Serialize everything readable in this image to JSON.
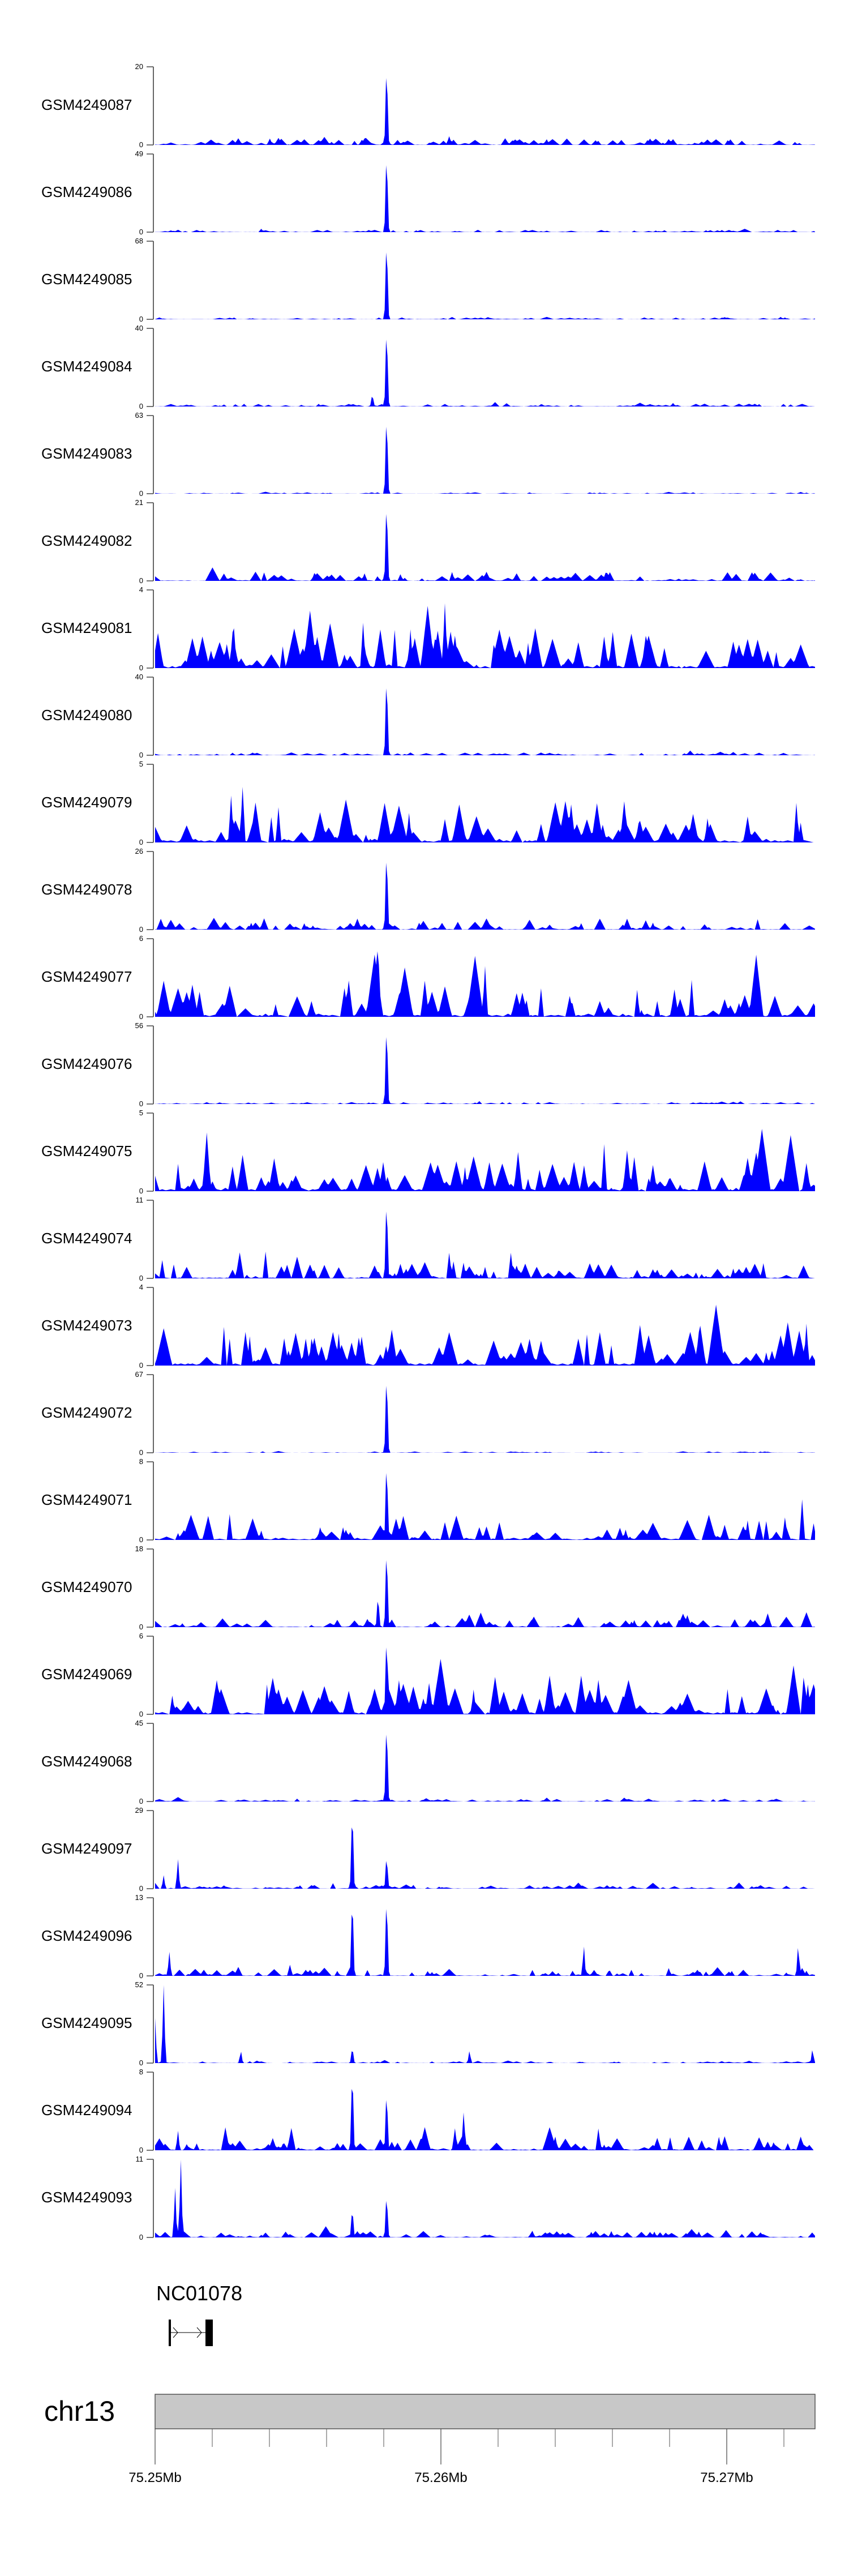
{
  "chart_data": {
    "type": "area",
    "title": "",
    "xlabel": "",
    "x_range_mb": [
      75.25,
      75.2731
    ],
    "fill_color": "#0000ff",
    "x_ticks": [
      {
        "value": 75.25,
        "label": "75.25Mb"
      },
      {
        "value": 75.26,
        "label": "75.26Mb"
      },
      {
        "value": 75.27,
        "label": "75.27Mb"
      }
    ],
    "minor_tick_step_mb": 0.002,
    "chromosome": {
      "label": "chr13",
      "color": "#c8c8c8"
    },
    "gene": {
      "name": "NC01078",
      "start_mb": 75.2505,
      "end_mb": 75.252,
      "strand": "+"
    },
    "tracks": [
      {
        "name": "GSM4249087",
        "ymax": 20,
        "ylim": [
          0,
          20
        ],
        "background": 0.15,
        "peaks": [
          [
            75.2581,
            20
          ]
        ]
      },
      {
        "name": "GSM4249086",
        "ymax": 49,
        "ylim": [
          0,
          49
        ],
        "background": 0.05,
        "peaks": [
          [
            75.2581,
            49
          ]
        ]
      },
      {
        "name": "GSM4249085",
        "ymax": 68,
        "ylim": [
          0,
          68
        ],
        "background": 0.04,
        "peaks": [
          [
            75.2581,
            68
          ]
        ]
      },
      {
        "name": "GSM4249084",
        "ymax": 40,
        "ylim": [
          0,
          40
        ],
        "background": 0.06,
        "peaks": [
          [
            75.2581,
            40
          ],
          [
            75.2576,
            6
          ]
        ]
      },
      {
        "name": "GSM4249083",
        "ymax": 63,
        "ylim": [
          0,
          63
        ],
        "background": 0.03,
        "peaks": [
          [
            75.2581,
            63
          ]
        ]
      },
      {
        "name": "GSM4249082",
        "ymax": 21,
        "ylim": [
          0,
          21
        ],
        "background": 0.2,
        "peaks": [
          [
            75.2581,
            21
          ]
        ]
      },
      {
        "name": "GSM4249081",
        "ymax": 4,
        "ylim": [
          0,
          4
        ],
        "background": 0.85,
        "peaks": []
      },
      {
        "name": "GSM4249080",
        "ymax": 40,
        "ylim": [
          0,
          40
        ],
        "background": 0.06,
        "peaks": [
          [
            75.2581,
            40
          ]
        ]
      },
      {
        "name": "GSM4249079",
        "ymax": 5,
        "ylim": [
          0,
          5
        ],
        "background": 0.9,
        "peaks": []
      },
      {
        "name": "GSM4249078",
        "ymax": 26,
        "ylim": [
          0,
          26
        ],
        "background": 0.15,
        "peaks": [
          [
            75.2581,
            26
          ]
        ]
      },
      {
        "name": "GSM4249077",
        "ymax": 6,
        "ylim": [
          0,
          6
        ],
        "background": 0.8,
        "peaks": [
          [
            75.2578,
            6
          ]
        ]
      },
      {
        "name": "GSM4249076",
        "ymax": 56,
        "ylim": [
          0,
          56
        ],
        "background": 0.04,
        "peaks": [
          [
            75.2581,
            56
          ]
        ]
      },
      {
        "name": "GSM4249075",
        "ymax": 5,
        "ylim": [
          0,
          5
        ],
        "background": 0.85,
        "peaks": []
      },
      {
        "name": "GSM4249074",
        "ymax": 11,
        "ylim": [
          0,
          11
        ],
        "background": 0.35,
        "peaks": [
          [
            75.2581,
            11
          ]
        ]
      },
      {
        "name": "GSM4249073",
        "ymax": 4,
        "ylim": [
          0,
          4
        ],
        "background": 0.9,
        "peaks": []
      },
      {
        "name": "GSM4249072",
        "ymax": 67,
        "ylim": [
          0,
          67
        ],
        "background": 0.03,
        "peaks": [
          [
            75.2581,
            67
          ]
        ]
      },
      {
        "name": "GSM4249071",
        "ymax": 8,
        "ylim": [
          0,
          8
        ],
        "background": 0.55,
        "peaks": [
          [
            75.2581,
            8
          ]
        ]
      },
      {
        "name": "GSM4249070",
        "ymax": 18,
        "ylim": [
          0,
          18
        ],
        "background": 0.2,
        "peaks": [
          [
            75.2581,
            18
          ],
          [
            75.2578,
            7
          ]
        ]
      },
      {
        "name": "GSM4249069",
        "ymax": 6,
        "ylim": [
          0,
          6
        ],
        "background": 0.85,
        "peaks": [
          [
            75.2581,
            6
          ]
        ]
      },
      {
        "name": "GSM4249068",
        "ymax": 45,
        "ylim": [
          0,
          45
        ],
        "background": 0.06,
        "peaks": [
          [
            75.2581,
            45
          ]
        ]
      },
      {
        "name": "GSM4249097",
        "ymax": 29,
        "ylim": [
          0,
          29
        ],
        "background": 0.08,
        "peaks": [
          [
            75.2569,
            29
          ],
          [
            75.2581,
            12
          ],
          [
            75.2508,
            11
          ],
          [
            75.2503,
            5
          ]
        ]
      },
      {
        "name": "GSM4249096",
        "ymax": 13,
        "ylim": [
          0,
          13
        ],
        "background": 0.15,
        "peaks": [
          [
            75.2569,
            13
          ],
          [
            75.2581,
            13
          ],
          [
            75.265,
            5
          ],
          [
            75.2505,
            4
          ],
          [
            75.2725,
            5
          ]
        ]
      },
      {
        "name": "GSM4249095",
        "ymax": 52,
        "ylim": [
          0,
          52
        ],
        "background": 0.04,
        "peaks": [
          [
            75.2503,
            52
          ],
          [
            75.25,
            30
          ],
          [
            75.2569,
            10
          ],
          [
            75.253,
            8
          ],
          [
            75.261,
            8
          ],
          [
            75.273,
            9
          ]
        ]
      },
      {
        "name": "GSM4249094",
        "ymax": 8,
        "ylim": [
          0,
          8
        ],
        "background": 0.3,
        "peaks": [
          [
            75.2569,
            8
          ],
          [
            75.2581,
            6
          ],
          [
            75.2608,
            4
          ],
          [
            75.2508,
            2
          ]
        ]
      },
      {
        "name": "GSM4249093",
        "ymax": 11,
        "ylim": [
          0,
          11
        ],
        "background": 0.15,
        "peaks": [
          [
            75.2509,
            11
          ],
          [
            75.2507,
            7
          ],
          [
            75.2581,
            6
          ],
          [
            75.2569,
            4
          ]
        ]
      }
    ]
  }
}
